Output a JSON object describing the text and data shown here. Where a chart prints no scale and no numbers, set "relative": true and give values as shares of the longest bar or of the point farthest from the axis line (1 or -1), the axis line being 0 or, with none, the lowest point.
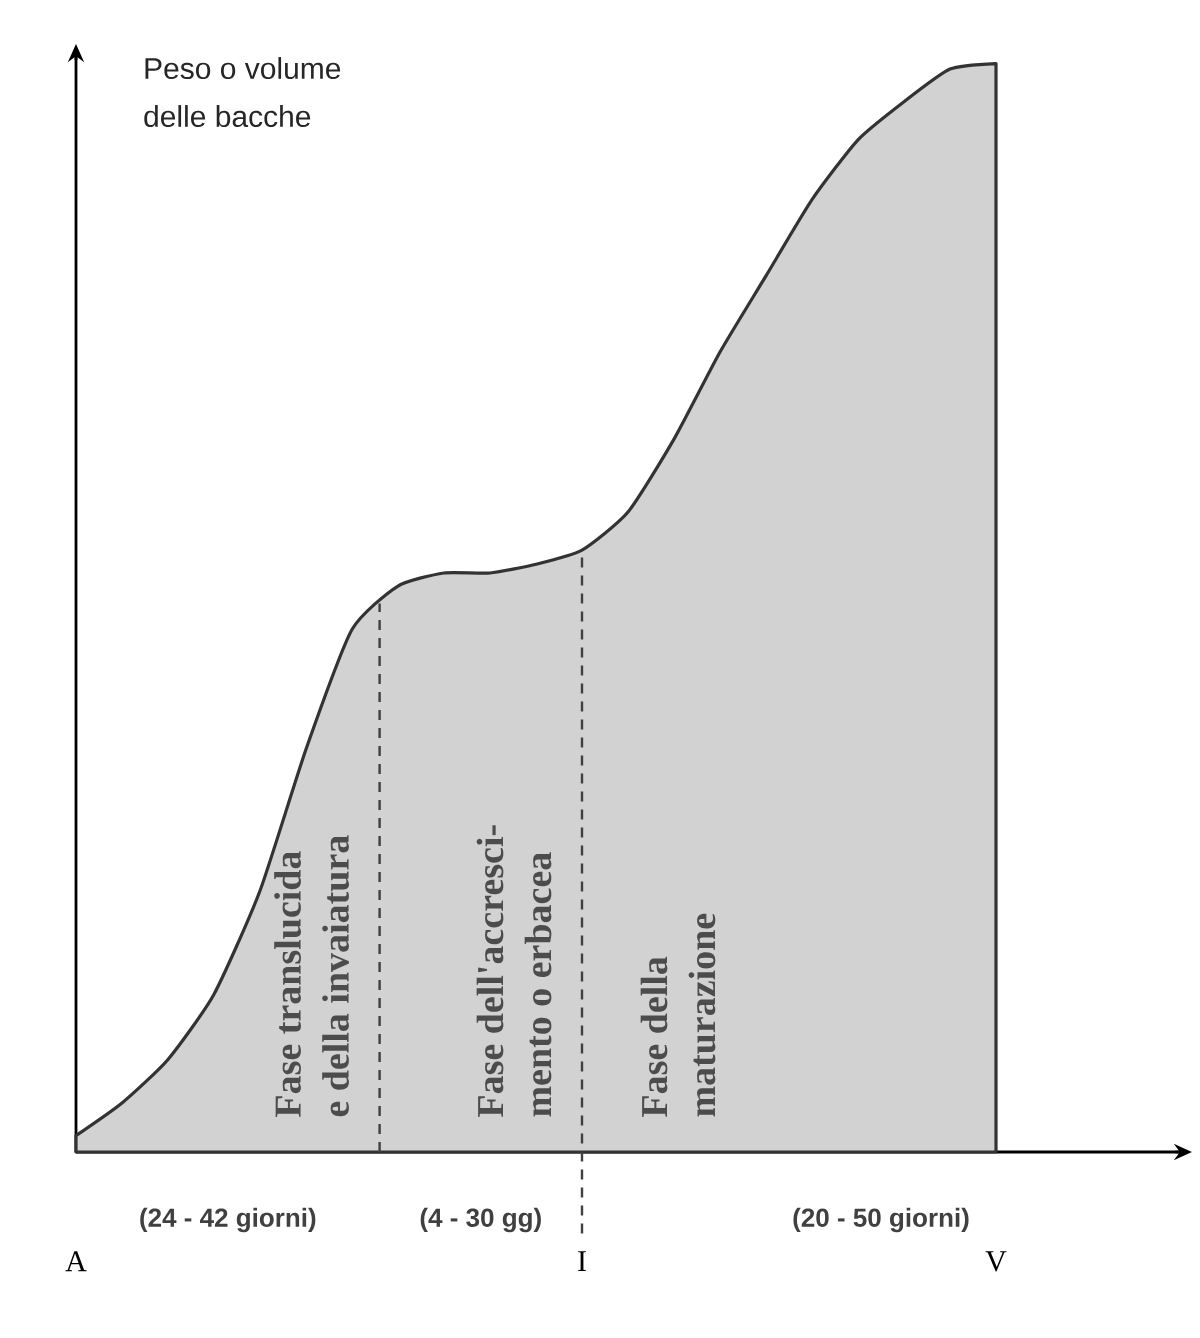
{
  "chart_data": {
    "type": "area",
    "relative": true,
    "ylabel": "Peso o volume delle bacche",
    "categories": [
      "A",
      null,
      null,
      null,
      null,
      null,
      null,
      null,
      null,
      null,
      null,
      "I",
      null,
      null,
      null,
      null,
      null,
      null,
      null,
      null,
      "V"
    ],
    "series": [
      {
        "color": "#333333",
        "values": [
          0.015,
          0.045,
          0.085,
          0.145,
          0.24,
          0.37,
          0.48,
          0.52,
          0.532,
          0.532,
          0.54,
          0.553,
          0.588,
          0.655,
          0.735,
          0.805,
          0.875,
          0.93,
          0.965,
          0.995,
          1
        ]
      }
    ],
    "ref_lines": [
      {
        "axis": "x",
        "value": "I",
        "line_style": "dashed"
      }
    ],
    "annotations": [
      "(24 - 42 giorni)",
      "(4 - 30 gg)",
      "(20 - 50 giorni)",
      "Fase translucida",
      "e della invaiatura",
      "Fase dell'accresci-",
      "mento o erbacea",
      "Fase della",
      "maturazione"
    ]
  }
}
